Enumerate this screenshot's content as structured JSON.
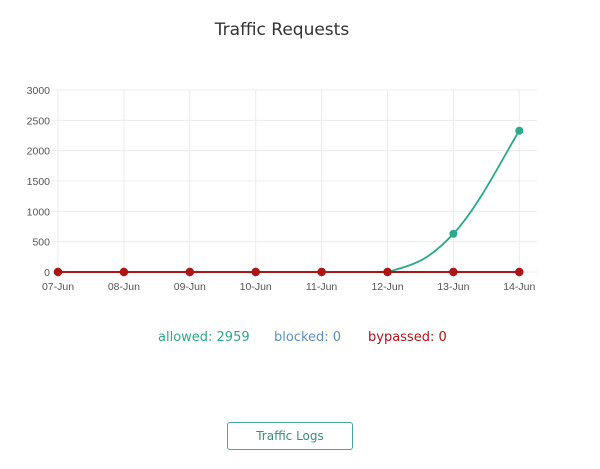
{
  "title": "Traffic Requests",
  "legend": {
    "allowed": "allowed: 2959",
    "blocked": "blocked: 0",
    "bypassed": "bypassed: 0"
  },
  "colors": {
    "allowed": "#2aaa8a",
    "blocked": "#5b8fc7",
    "bypassed": "#b01515"
  },
  "button": {
    "label": "Traffic Logs"
  },
  "chart_data": {
    "type": "line",
    "title": "Traffic Requests",
    "xlabel": "",
    "ylabel": "",
    "categories": [
      "07-Jun",
      "08-Jun",
      "09-Jun",
      "10-Jun",
      "11-Jun",
      "12-Jun",
      "13-Jun",
      "14-Jun"
    ],
    "y_ticks": [
      0,
      500,
      1000,
      1500,
      2000,
      2500,
      3000
    ],
    "ylim": [
      0,
      3000
    ],
    "grid": true,
    "legend_position": "bottom",
    "series": [
      {
        "name": "allowed",
        "color": "#2aaa8a",
        "values": [
          0,
          0,
          0,
          0,
          0,
          0,
          630,
          2329
        ],
        "total": 2959
      },
      {
        "name": "blocked",
        "color": "#5b8fc7",
        "values": [
          0,
          0,
          0,
          0,
          0,
          0,
          0,
          0
        ],
        "total": 0
      },
      {
        "name": "bypassed",
        "color": "#b01515",
        "values": [
          0,
          0,
          0,
          0,
          0,
          0,
          0,
          0
        ],
        "total": 0
      }
    ]
  }
}
